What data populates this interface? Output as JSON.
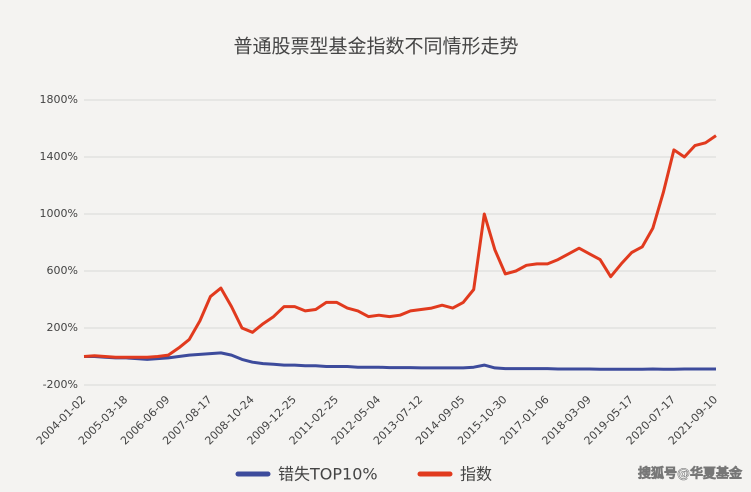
{
  "chart_data": {
    "type": "line",
    "title": "普通股票型基金指数不同情形走势",
    "categories": [
      "2004-01-02",
      null,
      null,
      null,
      "2005-03-18",
      null,
      null,
      null,
      "2006-06-09",
      null,
      null,
      null,
      "2007-08-17",
      null,
      null,
      null,
      "2008-10-24",
      null,
      null,
      null,
      "2009-12-25",
      null,
      null,
      null,
      "2011-02-25",
      null,
      null,
      null,
      "2012-05-04",
      null,
      null,
      null,
      "2013-07-12",
      null,
      null,
      null,
      "2014-09-05",
      null,
      null,
      null,
      "2015-10-30",
      null,
      null,
      null,
      "2017-01-06",
      null,
      null,
      null,
      "2018-03-09",
      null,
      null,
      null,
      "2019-05-17",
      null,
      null,
      null,
      "2020-07-17",
      null,
      null,
      null,
      "2021-09-10"
    ],
    "series": [
      {
        "name": "错失TOP10%",
        "color": "#3d4b9c",
        "values": [
          0,
          0,
          -5,
          -10,
          -10,
          -15,
          -20,
          -15,
          -10,
          0,
          10,
          15,
          20,
          25,
          10,
          -20,
          -40,
          -50,
          -55,
          -60,
          -60,
          -65,
          -65,
          -70,
          -70,
          -70,
          -75,
          -75,
          -75,
          -78,
          -78,
          -78,
          -80,
          -80,
          -80,
          -80,
          -80,
          -75,
          -60,
          -80,
          -85,
          -85,
          -85,
          -85,
          -85,
          -88,
          -88,
          -88,
          -88,
          -90,
          -90,
          -90,
          -90,
          -90,
          -88,
          -90,
          -90,
          -88,
          -88,
          -88,
          -88
        ]
      },
      {
        "name": "指数",
        "color": "#e13a1e",
        "values": [
          0,
          5,
          0,
          -5,
          -5,
          -5,
          -5,
          0,
          10,
          60,
          120,
          250,
          420,
          480,
          350,
          200,
          170,
          230,
          280,
          350,
          350,
          320,
          330,
          380,
          380,
          340,
          320,
          280,
          290,
          280,
          290,
          320,
          330,
          340,
          360,
          340,
          380,
          470,
          1000,
          750,
          580,
          600,
          640,
          650,
          650,
          680,
          720,
          760,
          720,
          680,
          560,
          650,
          730,
          770,
          900,
          1150,
          1450,
          1400,
          1480,
          1500,
          1550
        ]
      }
    ],
    "ylim": [
      -200,
      1800
    ],
    "yticks": [
      {
        "value": -200,
        "label": "-200%"
      },
      {
        "value": 200,
        "label": "200%"
      },
      {
        "value": 600,
        "label": "600%"
      },
      {
        "value": 1000,
        "label": "1000%"
      },
      {
        "value": 1400,
        "label": "1400%"
      },
      {
        "value": 1800,
        "label": "1800%"
      }
    ],
    "grid": true,
    "legend": "bottom",
    "watermark": "搜狐号@华夏基金"
  }
}
